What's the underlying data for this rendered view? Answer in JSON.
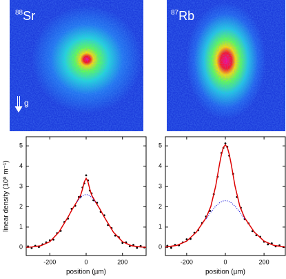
{
  "images": [
    {
      "isotope": "88",
      "element": "Sr",
      "arrow_label": "g"
    },
    {
      "isotope": "87",
      "element": "Rb"
    }
  ],
  "chart_data": [
    {
      "type": "line",
      "x_label": "position (µm)",
      "y_label": "linear density (10⁸ m⁻¹)",
      "xlim": [
        -330,
        330
      ],
      "ylim": [
        -0.4,
        5.45
      ],
      "xticks": [
        -200,
        0,
        200
      ],
      "yticks": [
        0,
        1,
        2,
        3,
        4,
        5
      ],
      "series": [
        {
          "style": "markers",
          "color": "#000000",
          "x": [
            -320,
            -300,
            -280,
            -260,
            -240,
            -220,
            -200,
            -180,
            -160,
            -140,
            -120,
            -100,
            -80,
            -60,
            -40,
            -30,
            -20,
            -10,
            0,
            10,
            20,
            30,
            40,
            60,
            80,
            100,
            120,
            140,
            160,
            180,
            200,
            220,
            240,
            260,
            280,
            300,
            320
          ],
          "values": [
            0.05,
            -0.03,
            0.08,
            0.02,
            0.15,
            0.25,
            0.35,
            0.38,
            0.7,
            0.81,
            1.25,
            1.42,
            1.9,
            2.05,
            2.48,
            2.5,
            2.95,
            3.15,
            3.55,
            3.3,
            2.8,
            2.66,
            2.32,
            2.2,
            1.75,
            1.58,
            1.1,
            0.95,
            0.58,
            0.5,
            0.22,
            0.25,
            0.06,
            0.12,
            -0.02,
            0.07,
            0.0
          ]
        },
        {
          "style": "line",
          "color": "#dd0000",
          "x": [
            -330,
            -300,
            -250,
            -200,
            -150,
            -100,
            -75,
            -50,
            -30,
            -20,
            -10,
            0,
            10,
            20,
            30,
            50,
            75,
            100,
            150,
            200,
            250,
            300,
            330
          ],
          "values": [
            0.01,
            0.02,
            0.08,
            0.28,
            0.75,
            1.49,
            1.9,
            2.26,
            2.58,
            2.87,
            3.23,
            3.4,
            3.23,
            2.87,
            2.58,
            2.26,
            1.9,
            1.49,
            0.75,
            0.28,
            0.08,
            0.02,
            0.01
          ]
        },
        {
          "style": "dotted",
          "color": "#2222dd",
          "x": [
            -50,
            -30,
            -20,
            -10,
            0,
            10,
            20,
            30,
            50
          ],
          "values": [
            2.26,
            2.47,
            2.54,
            2.59,
            2.6,
            2.59,
            2.54,
            2.47,
            2.26
          ]
        }
      ]
    },
    {
      "type": "line",
      "x_label": "position (µm)",
      "xlim": [
        -310,
        310
      ],
      "ylim": [
        -0.4,
        5.45
      ],
      "xticks": [
        -200,
        0,
        200
      ],
      "yticks": [
        0,
        1,
        2,
        3,
        4,
        5
      ],
      "series": [
        {
          "style": "markers",
          "color": "#000000",
          "x": [
            -300,
            -280,
            -260,
            -240,
            -220,
            -200,
            -180,
            -160,
            -140,
            -120,
            -100,
            -80,
            -60,
            -40,
            -20,
            -10,
            0,
            10,
            20,
            40,
            60,
            80,
            100,
            120,
            140,
            160,
            180,
            200,
            220,
            240,
            260,
            280,
            300
          ],
          "values": [
            0.08,
            -0.02,
            0.12,
            0.1,
            0.25,
            0.4,
            0.42,
            0.72,
            0.85,
            1.2,
            1.52,
            1.8,
            2.62,
            3.48,
            4.65,
            4.9,
            5.12,
            4.95,
            4.52,
            3.62,
            2.48,
            1.95,
            1.4,
            1.18,
            0.8,
            0.6,
            0.52,
            0.28,
            0.15,
            0.2,
            0.05,
            0.1,
            0.02
          ]
        },
        {
          "style": "line",
          "color": "#dd0000",
          "x": [
            -310,
            -300,
            -250,
            -200,
            -150,
            -100,
            -75,
            -50,
            -30,
            -20,
            -10,
            0,
            10,
            20,
            30,
            50,
            75,
            100,
            150,
            200,
            250,
            300,
            310
          ],
          "values": [
            0.02,
            0.03,
            0.1,
            0.31,
            0.75,
            1.45,
            2.02,
            3.02,
            4.11,
            4.59,
            4.93,
            5.05,
            4.93,
            4.59,
            4.11,
            3.02,
            2.02,
            1.45,
            0.75,
            0.31,
            0.1,
            0.03,
            0.02
          ]
        },
        {
          "style": "dotted",
          "color": "#2222dd",
          "x": [
            -100,
            -75,
            -50,
            -30,
            -20,
            -10,
            0,
            10,
            20,
            30,
            50,
            75,
            100
          ],
          "values": [
            1.4,
            1.74,
            2.03,
            2.2,
            2.25,
            2.29,
            2.3,
            2.29,
            2.25,
            2.2,
            2.03,
            1.74,
            1.4
          ]
        }
      ]
    }
  ]
}
